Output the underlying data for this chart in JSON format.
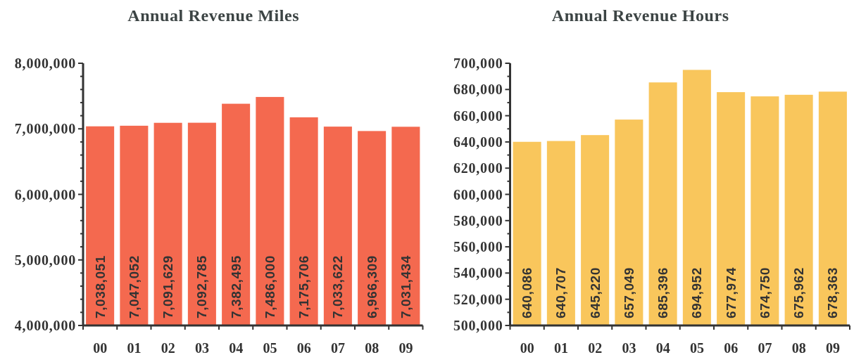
{
  "chart_data": [
    {
      "type": "bar",
      "title": "Annual Revenue Miles",
      "categories": [
        "00",
        "01",
        "02",
        "03",
        "04",
        "05",
        "06",
        "07",
        "08",
        "09"
      ],
      "values": [
        7038051,
        7047052,
        7091629,
        7092785,
        7382495,
        7486000,
        7175706,
        7033622,
        6966309,
        7031434
      ],
      "value_labels": [
        "7,038,051",
        "7,047,052",
        "7,091,629",
        "7,092,785",
        "7,382,495",
        "7,486,000",
        "7,175,706",
        "7,033,622",
        "6,966,309",
        "7,031,434"
      ],
      "color": "#f4694f",
      "ylim": [
        4000000,
        8000000
      ],
      "yticks": [
        {
          "value": 4000000,
          "label": "4,000,000"
        },
        {
          "value": 4200000,
          "label": null
        },
        {
          "value": 4400000,
          "label": null
        },
        {
          "value": 4600000,
          "label": null
        },
        {
          "value": 4800000,
          "label": null
        },
        {
          "value": 5000000,
          "label": "5,000,000"
        },
        {
          "value": 5200000,
          "label": null
        },
        {
          "value": 5400000,
          "label": null
        },
        {
          "value": 5600000,
          "label": null
        },
        {
          "value": 5800000,
          "label": null
        },
        {
          "value": 6000000,
          "label": "6,000,000"
        },
        {
          "value": 6200000,
          "label": null
        },
        {
          "value": 6400000,
          "label": null
        },
        {
          "value": 6600000,
          "label": null
        },
        {
          "value": 6800000,
          "label": null
        },
        {
          "value": 7000000,
          "label": "7,000,000"
        },
        {
          "value": 7200000,
          "label": null
        },
        {
          "value": 7400000,
          "label": null
        },
        {
          "value": 7600000,
          "label": null
        },
        {
          "value": 7800000,
          "label": null
        },
        {
          "value": 8000000,
          "label": "8,000,000"
        }
      ]
    },
    {
      "type": "bar",
      "title": "Annual Revenue Hours",
      "categories": [
        "00",
        "01",
        "02",
        "03",
        "04",
        "05",
        "06",
        "07",
        "08",
        "09"
      ],
      "values": [
        640086,
        640707,
        645220,
        657049,
        685396,
        694952,
        677974,
        674750,
        675962,
        678363
      ],
      "value_labels": [
        "640,086",
        "640,707",
        "645,220",
        "657,049",
        "685,396",
        "694,952",
        "677,974",
        "674,750",
        "675,962",
        "678,363"
      ],
      "color": "#f9c65c",
      "ylim": [
        500000,
        700000
      ],
      "yticks": [
        {
          "value": 500000,
          "label": "500,000"
        },
        {
          "value": 510000,
          "label": null
        },
        {
          "value": 520000,
          "label": "520,000"
        },
        {
          "value": 530000,
          "label": null
        },
        {
          "value": 540000,
          "label": "540,000"
        },
        {
          "value": 550000,
          "label": null
        },
        {
          "value": 560000,
          "label": "560,000"
        },
        {
          "value": 570000,
          "label": null
        },
        {
          "value": 580000,
          "label": "580,000"
        },
        {
          "value": 590000,
          "label": null
        },
        {
          "value": 600000,
          "label": "600,000"
        },
        {
          "value": 610000,
          "label": null
        },
        {
          "value": 620000,
          "label": "620,000"
        },
        {
          "value": 630000,
          "label": null
        },
        {
          "value": 640000,
          "label": "640,000"
        },
        {
          "value": 650000,
          "label": null
        },
        {
          "value": 660000,
          "label": "660,000"
        },
        {
          "value": 670000,
          "label": null
        },
        {
          "value": 680000,
          "label": "680,000"
        },
        {
          "value": 690000,
          "label": null
        },
        {
          "value": 700000,
          "label": "700,000"
        }
      ]
    }
  ]
}
